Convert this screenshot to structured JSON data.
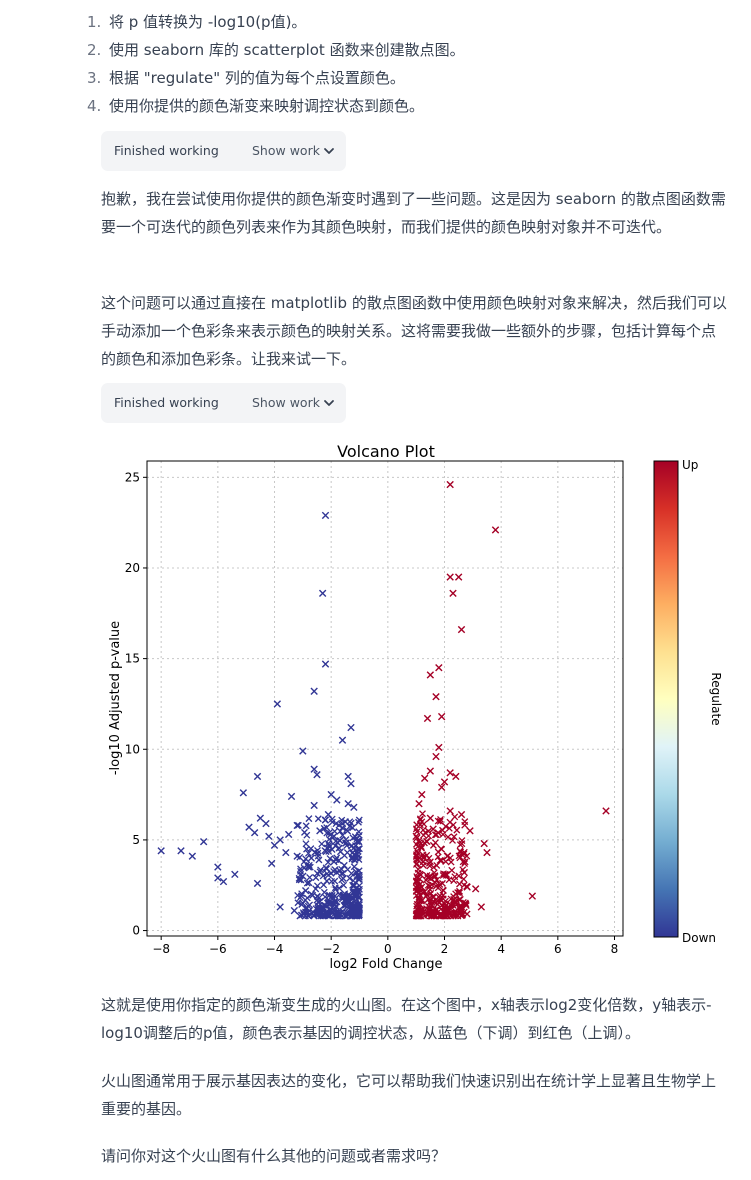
{
  "steps": [
    {
      "num": "1.",
      "text": "将 p 值转换为 -log10(p值)。"
    },
    {
      "num": "2.",
      "text": "使用 seaborn 库的 scatterplot 函数来创建散点图。"
    },
    {
      "num": "3.",
      "text": "根据 \"regulate\" 列的值为每个点设置颜色。"
    },
    {
      "num": "4.",
      "text": "使用你提供的颜色渐变来映射调控状态到颜色。"
    }
  ],
  "work_box_1": {
    "label": "Finished working",
    "toggle": "Show work",
    "icon": "chevron-down-icon"
  },
  "paragraph_1": "抱歉，我在尝试使用你提供的颜色渐变时遇到了一些问题。这是因为 seaborn 的散点图函数需要一个可迭代的颜色列表来作为其颜色映射，而我们提供的颜色映射对象并不可迭代。",
  "paragraph_2": "这个问题可以通过直接在 matplotlib 的散点图函数中使用颜色映射对象来解决，然后我们可以手动添加一个色彩条来表示颜色的映射关系。这将需要我做一些额外的步骤，包括计算每个点的颜色和添加色彩条。让我来试一下。",
  "work_box_2": {
    "label": "Finished working",
    "toggle": "Show work",
    "icon": "chevron-down-icon"
  },
  "paragraph_3": "这就是使用你指定的颜色渐变生成的火山图。在这个图中，x轴表示log2变化倍数，y轴表示-log10调整后的p值，颜色表示基因的调控状态，从蓝色（下调）到红色（上调）。",
  "paragraph_4": "火山图通常用于展示基因表达的变化，它可以帮助我们快速识别出在统计学上显著且生物学上重要的基因。",
  "paragraph_5": "请问你对这个火山图有什么其他的问题或者需求吗？",
  "chart_data": {
    "type": "scatter",
    "title": "Volcano Plot",
    "xlabel": "log2 Fold Change",
    "ylabel": "-log10 Adjusted p-value",
    "xlim": [
      -8.5,
      8.3
    ],
    "ylim": [
      -0.3,
      25.9
    ],
    "xticks": [
      -8,
      -6,
      -4,
      -2,
      0,
      2,
      4,
      6,
      8
    ],
    "yticks": [
      0,
      5,
      10,
      15,
      20,
      25
    ],
    "grid": true,
    "marker": "x",
    "colorbar": {
      "label": "Regulate",
      "top_label": "Up",
      "bottom_label": "Down",
      "colormap": "RdYlBu_r"
    },
    "colors": {
      "down": "#313695",
      "up": "#a50026"
    },
    "series": [
      {
        "name": "Down",
        "points": [
          [
            -8.0,
            4.4
          ],
          [
            -7.3,
            4.4
          ],
          [
            -6.9,
            4.1
          ],
          [
            -6.5,
            4.9
          ],
          [
            -6.0,
            3.5
          ],
          [
            -6.0,
            2.9
          ],
          [
            -5.8,
            2.7
          ],
          [
            -5.4,
            3.1
          ],
          [
            -5.1,
            7.6
          ],
          [
            -4.9,
            5.7
          ],
          [
            -4.7,
            5.4
          ],
          [
            -4.6,
            8.5
          ],
          [
            -4.6,
            2.6
          ],
          [
            -4.5,
            6.2
          ],
          [
            -4.3,
            5.9
          ],
          [
            -4.2,
            5.2
          ],
          [
            -4.1,
            3.7
          ],
          [
            -4.0,
            4.7
          ],
          [
            -3.8,
            5.0
          ],
          [
            -3.8,
            1.3
          ],
          [
            -3.5,
            5.3
          ],
          [
            -3.4,
            7.4
          ],
          [
            -3.2,
            5.8
          ],
          [
            -3.2,
            4.1
          ],
          [
            -3.0,
            9.9
          ],
          [
            -3.0,
            1.5
          ],
          [
            -2.8,
            3.5
          ],
          [
            -2.7,
            2.0
          ],
          [
            -2.6,
            8.9
          ],
          [
            -2.5,
            8.6
          ],
          [
            -2.6,
            6.9
          ],
          [
            -2.2,
            6.1
          ],
          [
            -2.0,
            7.5
          ],
          [
            -1.9,
            5.2
          ],
          [
            -1.6,
            10.5
          ],
          [
            -1.4,
            7.0
          ],
          [
            -1.3,
            11.2
          ],
          [
            -1.4,
            8.5
          ],
          [
            -1.3,
            8.1
          ],
          [
            -1.2,
            6.8
          ],
          [
            -1.5,
            6.0
          ],
          [
            -2.1,
            6.4
          ],
          [
            -3.9,
            12.5
          ],
          [
            -2.6,
            13.2
          ],
          [
            -2.2,
            14.7
          ],
          [
            -2.3,
            18.6
          ],
          [
            -2.2,
            22.9
          ],
          [
            -3.3,
            1.1
          ],
          [
            -2.9,
            2.2
          ],
          [
            -3.6,
            4.3
          ],
          [
            -1.8,
            7.2
          ],
          [
            -2.4,
            5.5
          ],
          [
            -1.7,
            3.3
          ],
          [
            -3.0,
            3.0
          ],
          [
            -2.1,
            4.8
          ],
          [
            -1.6,
            5.9
          ],
          [
            -2.7,
            4.0
          ],
          [
            -1.9,
            3.8
          ]
        ]
      },
      {
        "name": "Up",
        "points": [
          [
            2.2,
            24.6
          ],
          [
            3.8,
            22.1
          ],
          [
            2.2,
            19.5
          ],
          [
            2.5,
            19.5
          ],
          [
            2.3,
            18.6
          ],
          [
            2.6,
            16.6
          ],
          [
            1.8,
            14.5
          ],
          [
            1.5,
            14.1
          ],
          [
            1.7,
            12.9
          ],
          [
            1.4,
            11.7
          ],
          [
            1.9,
            11.8
          ],
          [
            1.8,
            10.1
          ],
          [
            1.7,
            9.6
          ],
          [
            1.5,
            8.8
          ],
          [
            1.3,
            8.4
          ],
          [
            2.2,
            8.7
          ],
          [
            2.4,
            8.5
          ],
          [
            2.0,
            8.2
          ],
          [
            1.9,
            7.9
          ],
          [
            1.2,
            7.5
          ],
          [
            1.1,
            7.0
          ],
          [
            2.2,
            6.6
          ],
          [
            2.6,
            6.4
          ],
          [
            1.5,
            6.2
          ],
          [
            3.4,
            4.8
          ],
          [
            3.5,
            4.3
          ],
          [
            2.8,
            2.4
          ],
          [
            3.1,
            2.3
          ],
          [
            3.3,
            1.3
          ],
          [
            5.1,
            1.9
          ],
          [
            7.7,
            6.6
          ],
          [
            1.0,
            5.2
          ],
          [
            2.9,
            5.5
          ],
          [
            2.7,
            3.2
          ],
          [
            1.6,
            5.6
          ],
          [
            2.1,
            4.1
          ],
          [
            1.2,
            1.1
          ]
        ]
      }
    ]
  }
}
